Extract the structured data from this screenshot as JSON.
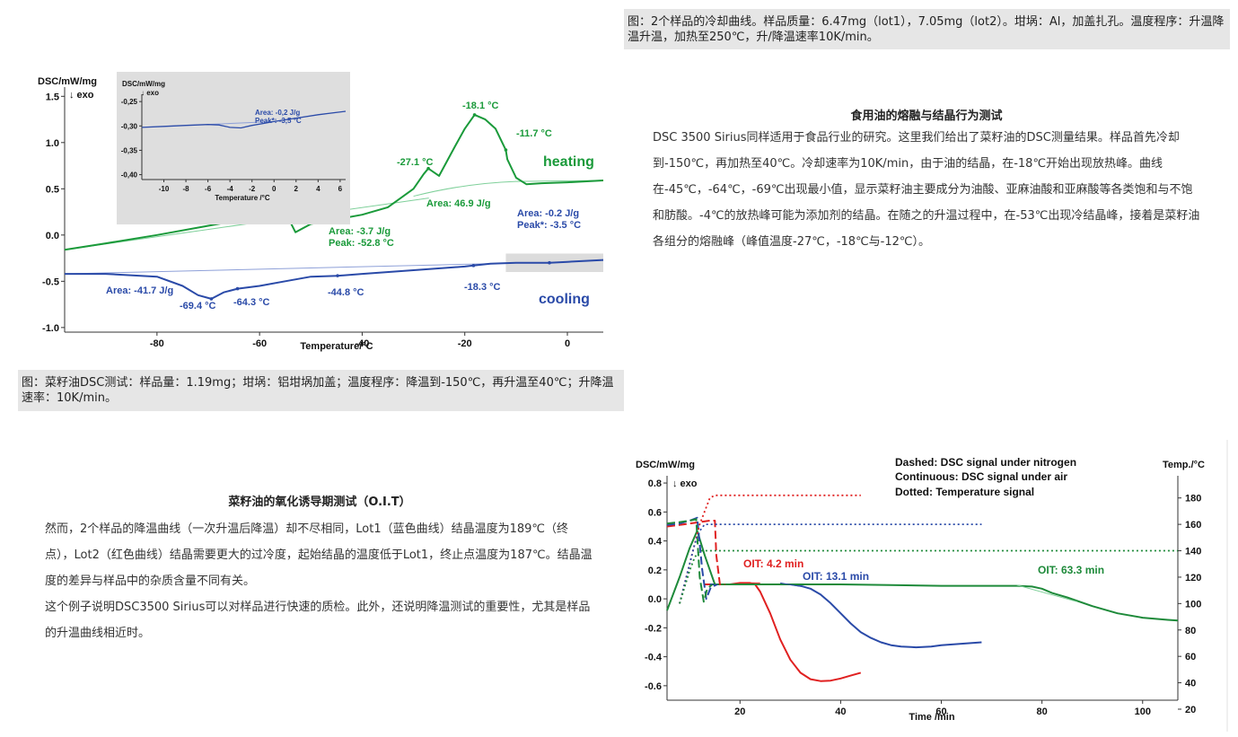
{
  "captions": {
    "top": "图：2个样品的冷却曲线。样品质量：6.47mg（lot1），7.05mg（lot2）。坩埚：Al，加盖扎孔。温度程序：升温降温升温，加热至250℃，升/降温速率10K/min。",
    "left": "图：菜籽油DSC测试：样品量：1.19mg；坩埚：铝坩埚加盖；温度程序：降温到-150℃，再升温至40℃；升降温速率：10K/min。"
  },
  "section_melting": {
    "title": "食用油的熔融与结晶行为测试",
    "body": "DSC 3500 Sirius同样适用于食品行业的研究。这里我们给出了菜籽油的DSC测量结果。样品首先冷却到-150℃，再加热至40℃。冷却速率为10K/min，由于油的结晶，在-18℃开始出现放热峰。曲线在-45℃，-64℃，-69℃出现最小值，显示菜籽油主要成分为油酸、亚麻油酸和亚麻酸等各类饱和与不饱和肪酸。-4℃的放热峰可能为添加剂的结晶。在随之的升温过程中，在-53℃出现冷结晶峰，接着是菜籽油各组分的熔融峰（峰值温度-27℃，-18℃与-12℃）。"
  },
  "section_oit": {
    "title": "菜籽油的氧化诱导期测试（O.I.T）",
    "para1": "然而，2个样品的降温曲线（一次升温后降温）却不尽相同，Lot1（蓝色曲线）结晶温度为189℃（终点），Lot2（红色曲线）结晶需要更大的过冷度，起始结晶的温度低于Lot1，终止点温度为187℃。结晶温度的差异与样品中的杂质含量不同有关。",
    "para2": "这个例子说明DSC3500 Sirius可以对样品进行快速的质检。此外，还说明降温测试的重要性，尤其是样品的升温曲线相近时。"
  },
  "chart_data": [
    {
      "type": "line",
      "ylabel": "DSC/mW/mg",
      "ylabel2": "↓ exo",
      "xlabel": "Temperature/°C",
      "xlim": [
        -98,
        7
      ],
      "ylim": [
        -1.05,
        1.6
      ],
      "xticks": [
        -80,
        -60,
        -40,
        -20,
        0
      ],
      "yticks": [
        1.5,
        1.0,
        0.5,
        0.0,
        -0.5,
        -1.0
      ],
      "series": [
        {
          "name": "heating",
          "color": "#1a9a3a",
          "x": [
            -98,
            -90,
            -80,
            -70,
            -60,
            -55,
            -53,
            -50,
            -45,
            -40,
            -35,
            -30,
            -28,
            -27.1,
            -25,
            -22,
            -20,
            -18.1,
            -16,
            -14,
            -12,
            -11.7,
            -10,
            -8,
            -5,
            0,
            7
          ],
          "y": [
            -0.16,
            -0.09,
            0.0,
            0.1,
            0.2,
            0.25,
            0.03,
            0.12,
            0.17,
            0.22,
            0.3,
            0.5,
            0.66,
            0.72,
            0.64,
            0.95,
            1.15,
            1.3,
            1.25,
            1.15,
            0.92,
            0.82,
            0.62,
            0.55,
            0.56,
            0.57,
            0.59
          ]
        },
        {
          "name": "cooling",
          "color": "#2a4aa8",
          "x": [
            -98,
            -90,
            -80,
            -75,
            -72,
            -69.4,
            -67,
            -64.3,
            -60,
            -55,
            -50,
            -44.8,
            -40,
            -30,
            -20,
            -18.3,
            -15,
            -10,
            -4,
            -3.5,
            0,
            7
          ],
          "y": [
            -0.42,
            -0.42,
            -0.45,
            -0.55,
            -0.65,
            -0.69,
            -0.62,
            -0.58,
            -0.55,
            -0.5,
            -0.45,
            -0.44,
            -0.42,
            -0.38,
            -0.34,
            -0.33,
            -0.31,
            -0.3,
            -0.3,
            -0.3,
            -0.29,
            -0.27
          ]
        }
      ],
      "legend_text": {
        "heating": "heating",
        "cooling": "cooling"
      },
      "annotations": {
        "peak_heat_1": "-27.1 °C",
        "peak_heat_2": "-18.1 °C",
        "peak_heat_3": "-11.7 °C",
        "area_heat": "Area: 46.9 J/g",
        "cold_cryst_area": "Area:   -3.7 J/g",
        "cold_cryst_peak": "Peak:  -52.8 °C",
        "cool_area": "Area: -41.7 J/g",
        "cool_peak_1": "-69.4 °C",
        "cool_peak_2": "-64.3 °C",
        "cool_peak_3": "-44.8 °C",
        "cool_onset": "-18.3 °C",
        "small_area": "Area:   -0.2 J/g",
        "small_peak": "Peak*: -3.5 °C"
      },
      "inset": {
        "ylabel": "DSC/mW/mg",
        "ylabel2": "↓ exo",
        "xlabel": "Temperature /°C",
        "xticks": [
          -10,
          -8,
          -6,
          -4,
          -2,
          0,
          2,
          4,
          6
        ],
        "yticks": [
          -0.25,
          -0.3,
          -0.35,
          -0.4
        ],
        "ytick_labels": [
          "-0,25",
          "-0,30",
          "-0,35",
          "-0,40"
        ],
        "area": "Area:   -0,2 J/g",
        "peak": "Peak*:  -3,5 °C",
        "x": [
          -12,
          -10,
          -8,
          -6,
          -5,
          -4,
          -3,
          -2,
          -1,
          0,
          2,
          4,
          6.5
        ],
        "y": [
          -0.303,
          -0.301,
          -0.299,
          -0.297,
          -0.298,
          -0.303,
          -0.304,
          -0.299,
          -0.295,
          -0.291,
          -0.284,
          -0.277,
          -0.27
        ]
      }
    },
    {
      "type": "line",
      "ylabel": "DSC/mW/mg",
      "ylabel2": "↓ exo",
      "y2label": "Temp./°C",
      "xlabel": "Time /min",
      "xlim": [
        5.5,
        107
      ],
      "ylim": [
        -0.7,
        0.85
      ],
      "y2lim": [
        20,
        190
      ],
      "xticks": [
        20,
        40,
        60,
        80,
        100
      ],
      "yticks": [
        0.8,
        0.6,
        0.4,
        0.2,
        0.0,
        -0.2,
        -0.4,
        -0.6
      ],
      "y2ticks": [
        180,
        160,
        140,
        120,
        100,
        80,
        60,
        40,
        20
      ],
      "legend": [
        "Dashed: DSC signal under nitrogen",
        "Continuous: DSC signal under air",
        "Dotted: Temperature signal"
      ],
      "oit_labels": {
        "red": "OIT: 4.2 min",
        "blue": "OIT: 13.1 min",
        "green": "OIT: 63.3 min"
      },
      "series": [
        {
          "name": "",
          "color": "#e02020",
          "style": "continuous",
          "x": [
            13,
            14.5,
            16,
            18,
            20,
            22,
            23,
            24,
            26,
            28,
            30,
            32,
            34,
            36,
            38,
            40,
            42,
            44
          ],
          "y": [
            0.1,
            0.1,
            0.1,
            0.1,
            0.11,
            0.11,
            0.1,
            0.05,
            -0.1,
            -0.28,
            -0.42,
            -0.51,
            -0.555,
            -0.568,
            -0.565,
            -0.55,
            -0.53,
            -0.51
          ]
        },
        {
          "name": "",
          "color": "#2a4aa8",
          "style": "continuous",
          "x": [
            14,
            16,
            18,
            20,
            24,
            28,
            30,
            32,
            34,
            36,
            38,
            40,
            42,
            44,
            46,
            48,
            50,
            52,
            55,
            58,
            60,
            64,
            68
          ],
          "y": [
            0.1,
            0.1,
            0.1,
            0.1,
            0.1,
            0.1,
            0.1,
            0.09,
            0.07,
            0.03,
            -0.03,
            -0.1,
            -0.17,
            -0.23,
            -0.27,
            -0.3,
            -0.32,
            -0.33,
            -0.335,
            -0.33,
            -0.32,
            -0.31,
            -0.3
          ]
        },
        {
          "name": "",
          "color": "#1e8a3a",
          "style": "continuous",
          "x": [
            5.5,
            8,
            10,
            11.5,
            13,
            15,
            18,
            20,
            30,
            40,
            50,
            60,
            70,
            75,
            78,
            80,
            82,
            85,
            90,
            95,
            100,
            105,
            107
          ],
          "y": [
            -0.08,
            0.15,
            0.35,
            0.47,
            0.3,
            0.1,
            0.1,
            0.1,
            0.1,
            0.1,
            0.095,
            0.09,
            0.09,
            0.09,
            0.085,
            0.07,
            0.04,
            0.01,
            -0.05,
            -0.1,
            -0.13,
            -0.145,
            -0.15
          ]
        },
        {
          "name": "",
          "color": "#e02020",
          "style": "dashed",
          "x": [
            5.5,
            8,
            10,
            12,
            14,
            15,
            15.3,
            16,
            17
          ],
          "y": [
            0.5,
            0.51,
            0.52,
            0.53,
            0.54,
            0.54,
            0.3,
            0.1,
            0.1
          ]
        },
        {
          "name": "",
          "color": "#2a4aa8",
          "style": "dashed",
          "x": [
            5.5,
            8,
            10,
            11.5,
            12.5,
            13.3,
            14.2,
            15.5
          ],
          "y": [
            0.51,
            0.52,
            0.54,
            0.56,
            0.2,
            0.0,
            0.08,
            0.1
          ]
        },
        {
          "name": "",
          "color": "#1e8a3a",
          "style": "dashed",
          "x": [
            5.5,
            8,
            10,
            11.3,
            12,
            12.8,
            13.5,
            14.5
          ],
          "y": [
            0.52,
            0.53,
            0.54,
            0.55,
            0.15,
            -0.02,
            0.07,
            0.1
          ]
        },
        {
          "name": "",
          "color": "#e02020",
          "style": "dotted",
          "y_axis": "right",
          "x": [
            8,
            10,
            12,
            14,
            15,
            20,
            30,
            44
          ],
          "y": [
            100,
            130,
            160,
            180,
            182,
            182,
            182,
            182
          ]
        },
        {
          "name": "",
          "color": "#2a4aa8",
          "style": "dotted",
          "y_axis": "right",
          "x": [
            8,
            10,
            11,
            12,
            13,
            20,
            40,
            68
          ],
          "y": [
            100,
            130,
            145,
            155,
            160,
            160,
            160,
            160
          ]
        },
        {
          "name": "",
          "color": "#1e8a3a",
          "style": "dotted",
          "y_axis": "right",
          "x": [
            8,
            10,
            11,
            12,
            20,
            60,
            107
          ],
          "y": [
            100,
            125,
            135,
            140,
            140,
            140,
            140
          ]
        }
      ]
    }
  ]
}
